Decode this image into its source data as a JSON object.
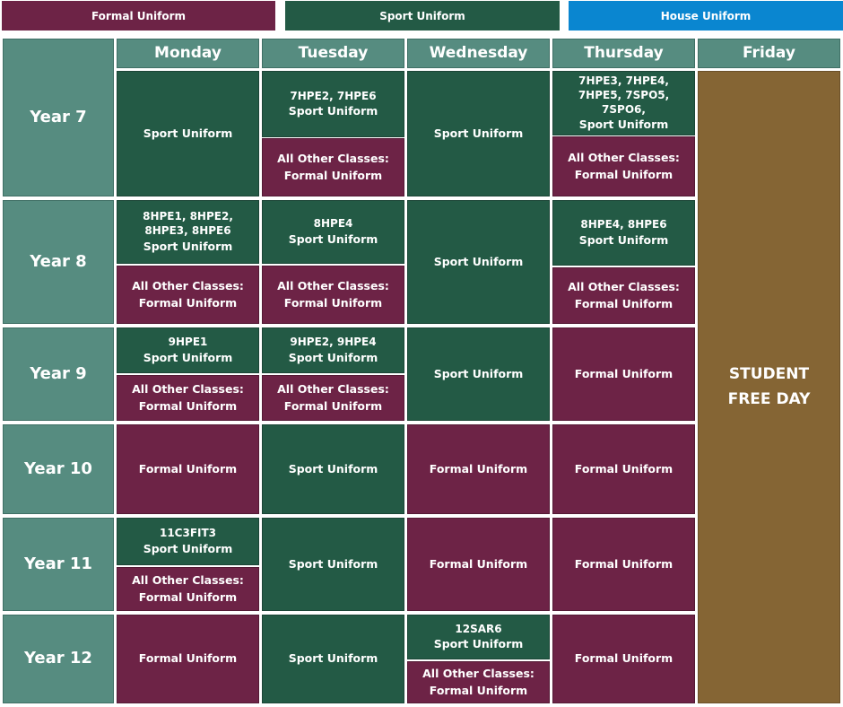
{
  "legend": {
    "formal": "Formal Uniform",
    "sport": "Sport Uniform",
    "house": "House Uniform"
  },
  "colors": {
    "formal": "#6d2346",
    "sport": "#235a45",
    "house": "#0a86d0",
    "header": "#568c80",
    "free_day": "#856534"
  },
  "days": [
    "Monday",
    "Tuesday",
    "Wednesday",
    "Thursday",
    "Friday"
  ],
  "years": [
    "Year 7",
    "Year 8",
    "Year 9",
    "Year 10",
    "Year 11",
    "Year 12"
  ],
  "friday": "STUDENT FREE DAY",
  "cells": {
    "y7_mon": "Sport Uniform",
    "y7_tue_top_classes": "7HPE2, 7HPE6",
    "y7_tue_top_uniform": "Sport Uniform",
    "y7_tue_bot_l1": "All Other Classes:",
    "y7_tue_bot_l2": "Formal  Uniform",
    "y7_wed": "Sport Uniform",
    "y7_thu_top_classes": "7HPE3, 7HPE4, 7HPE5, 7SPO5, 7SPO6,",
    "y7_thu_top_uniform": "Sport Uniform",
    "y7_thu_bot_l1": "All Other Classes:",
    "y7_thu_bot_l2": "Formal  Uniform",
    "y8_mon_top_classes": "8HPE1, 8HPE2, 8HPE3, 8HPE6",
    "y8_mon_top_uniform": "Sport Uniform",
    "y8_mon_bot_l1": "All Other Classes:",
    "y8_mon_bot_l2": "Formal  Uniform",
    "y8_tue_top_classes": "8HPE4",
    "y8_tue_top_uniform": "Sport Uniform",
    "y8_tue_bot_l1": "All Other Classes:",
    "y8_tue_bot_l2": "Formal  Uniform",
    "y8_wed": "Sport Uniform",
    "y8_thu_top_classes": "8HPE4, 8HPE6",
    "y8_thu_top_uniform": "Sport Uniform",
    "y8_thu_bot_l1": "All Other Classes:",
    "y8_thu_bot_l2": "Formal  Uniform",
    "y9_mon_top_classes": "9HPE1",
    "y9_mon_top_uniform": "Sport Uniform",
    "y9_mon_bot_l1": "All Other Classes:",
    "y9_mon_bot_l2": "Formal Uniform",
    "y9_tue_top_classes": "9HPE2, 9HPE4",
    "y9_tue_top_uniform": "Sport Uniform",
    "y9_tue_bot_l1": "All Other Classes:",
    "y9_tue_bot_l2": "Formal Uniform",
    "y9_wed": "Sport Uniform",
    "y9_thu": "Formal  Uniform",
    "y10_mon": "Formal Uniform",
    "y10_tue": "Sport Uniform",
    "y10_wed": "Formal Uniform",
    "y10_thu": "Formal Uniform",
    "y11_mon_top_classes": "11C3FIT3",
    "y11_mon_top_uniform": "Sport Uniform",
    "y11_mon_bot_l1": "All Other Classes:",
    "y11_mon_bot_l2": "Formal  Uniform",
    "y11_tue": "Sport Uniform",
    "y11_wed": "Formal Uniform",
    "y11_thu": "Formal Uniform",
    "y12_mon": "Formal Uniform",
    "y12_tue": "Sport Uniform",
    "y12_wed_top_classes": "12SAR6",
    "y12_wed_top_uniform": "Sport Uniform",
    "y12_wed_bot_l1": "All Other Classes:",
    "y12_wed_bot_l2": "Formal Uniform",
    "y12_thu": "Formal Uniform"
  }
}
